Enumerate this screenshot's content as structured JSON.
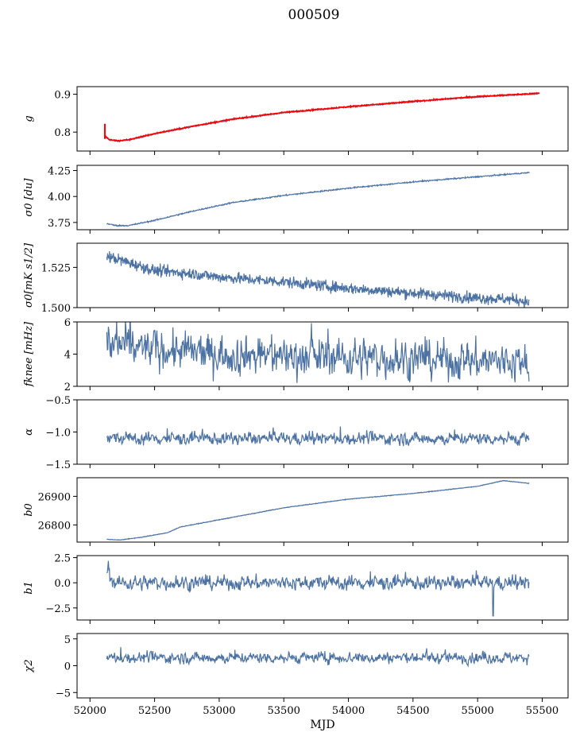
{
  "figure": {
    "title": "000509"
  },
  "chart_data": [
    {
      "id": "g",
      "type": "line",
      "ylabel": "g",
      "title": "",
      "xlabel": "",
      "xlim": [
        51900,
        55700
      ],
      "ylim": [
        0.75,
        0.92
      ],
      "yticks": [
        0.8,
        0.9
      ],
      "ytick_labels": [
        "0.8",
        "0.9"
      ],
      "series": [
        {
          "name": "g (blue)",
          "color": "#4c72a4",
          "kind": "trend",
          "x": [
            52110,
            52150,
            52220,
            52300,
            52500,
            52800,
            53100,
            53500,
            54000,
            54500,
            55000,
            55400,
            55480
          ],
          "values": [
            0.79,
            0.779,
            0.776,
            0.779,
            0.795,
            0.815,
            0.833,
            0.851,
            0.866,
            0.88,
            0.893,
            0.9,
            0.902
          ],
          "noise": 0.0015
        },
        {
          "name": "g (red)",
          "color": "#ff0000",
          "kind": "trend",
          "x": [
            52110,
            52150,
            52220,
            52300,
            52500,
            52800,
            53100,
            53500,
            54000,
            54500,
            55000,
            55400,
            55480
          ],
          "values": [
            0.792,
            0.78,
            0.777,
            0.78,
            0.796,
            0.816,
            0.834,
            0.852,
            0.867,
            0.881,
            0.894,
            0.901,
            0.903
          ],
          "noise": 0.0015,
          "spike_at": 52115,
          "spike_range": [
            0.782,
            0.822
          ]
        }
      ]
    },
    {
      "id": "sigma0",
      "type": "line",
      "ylabel": "σ0 [du]",
      "xlim": [
        51900,
        55700
      ],
      "ylim": [
        3.68,
        4.3
      ],
      "yticks": [
        3.75,
        4.0,
        4.25
      ],
      "ytick_labels": [
        "3.75",
        "4.00",
        "4.25"
      ],
      "series": [
        {
          "name": "sigma0",
          "color": "#4c72a4",
          "kind": "trend",
          "x": [
            52130,
            52200,
            52300,
            52500,
            52800,
            53100,
            53500,
            54000,
            54500,
            55000,
            55400
          ],
          "values": [
            3.74,
            3.72,
            3.72,
            3.77,
            3.86,
            3.94,
            4.01,
            4.08,
            4.14,
            4.19,
            4.23
          ],
          "noise": 0.006
        }
      ]
    },
    {
      "id": "sigma1",
      "type": "line",
      "ylabel": "σ0[mK s1/2]",
      "xlim": [
        51900,
        55700
      ],
      "ylim": [
        1.5,
        1.54
      ],
      "yticks": [
        1.5,
        1.525
      ],
      "ytick_labels": [
        "1.500",
        "1.525"
      ],
      "series": [
        {
          "name": "sigma1",
          "color": "#4c72a4",
          "kind": "trend",
          "x": [
            52130,
            52300,
            52500,
            52800,
            53000,
            53500,
            54000,
            54500,
            55000,
            55300,
            55400
          ],
          "values": [
            1.532,
            1.528,
            1.523,
            1.521,
            1.519,
            1.516,
            1.512,
            1.509,
            1.506,
            1.505,
            1.503
          ],
          "noise": 0.0035
        }
      ]
    },
    {
      "id": "fknee",
      "type": "line",
      "ylabel": "fknee [mHz]",
      "xlim": [
        51900,
        55700
      ],
      "ylim": [
        2,
        6
      ],
      "yticks": [
        2,
        4,
        6
      ],
      "ytick_labels": [
        "2",
        "4",
        "6"
      ],
      "series": [
        {
          "name": "fknee",
          "color": "#4c72a4",
          "kind": "noisy",
          "x": [
            52130,
            52400,
            52800,
            53500,
            54500,
            55400
          ],
          "values": [
            4.6,
            4.4,
            4.1,
            3.9,
            3.7,
            3.5
          ],
          "noise": 1.1
        }
      ]
    },
    {
      "id": "alpha",
      "type": "line",
      "ylabel": "α",
      "xlim": [
        51900,
        55700
      ],
      "ylim": [
        -1.5,
        -0.5
      ],
      "yticks": [
        -1.5,
        -1.0,
        -0.5
      ],
      "ytick_labels": [
        "−1.5",
        "−1.0",
        "−0.5"
      ],
      "series": [
        {
          "name": "alpha",
          "color": "#4c72a4",
          "kind": "noisy",
          "x": [
            52130,
            55400
          ],
          "values": [
            -1.1,
            -1.1
          ],
          "noise": 0.09
        }
      ]
    },
    {
      "id": "b0",
      "type": "line",
      "ylabel": "b0",
      "xlim": [
        51900,
        55700
      ],
      "ylim": [
        26740,
        26965
      ],
      "yticks": [
        26800,
        26900
      ],
      "ytick_labels": [
        "26800",
        "26900"
      ],
      "series": [
        {
          "name": "b0",
          "color": "#4c72a4",
          "kind": "trend",
          "x": [
            52130,
            52220,
            52400,
            52600,
            52700,
            53000,
            53500,
            54000,
            54500,
            55000,
            55200,
            55400
          ],
          "values": [
            26750,
            26747,
            26757,
            26773,
            26793,
            26818,
            26860,
            26890,
            26910,
            26935,
            26955,
            26945
          ],
          "noise": 1.0
        }
      ]
    },
    {
      "id": "b1",
      "type": "line",
      "ylabel": "b1",
      "xlim": [
        51900,
        55700
      ],
      "ylim": [
        -3.7,
        2.7
      ],
      "yticks": [
        -2.5,
        0.0,
        2.5
      ],
      "ytick_labels": [
        "−2.5",
        "0.0",
        "2.5"
      ],
      "series": [
        {
          "name": "b1",
          "color": "#4c72a4",
          "kind": "noisy",
          "x": [
            52130,
            52180,
            55400
          ],
          "values": [
            1.5,
            0.0,
            0.0
          ],
          "noise": 0.65,
          "dip_at": 55120,
          "dip_value": -3.3
        }
      ]
    },
    {
      "id": "chi2",
      "type": "line",
      "ylabel": "χ2",
      "xlim": [
        51900,
        55700
      ],
      "ylim": [
        -6,
        6
      ],
      "yticks": [
        -5,
        0,
        5
      ],
      "ytick_labels": [
        "−5",
        "0",
        "5"
      ],
      "series": [
        {
          "name": "chi2",
          "color": "#4c72a4",
          "kind": "noisy",
          "x": [
            52130,
            55400
          ],
          "values": [
            1.5,
            1.5
          ],
          "noise": 0.95
        }
      ],
      "xlabel": "MJD",
      "xticks": [
        52000,
        52500,
        53000,
        53500,
        54000,
        54500,
        55000,
        55500
      ],
      "xtick_labels": [
        "52000",
        "52500",
        "53000",
        "53500",
        "54000",
        "54500",
        "55000",
        "55500"
      ]
    }
  ]
}
